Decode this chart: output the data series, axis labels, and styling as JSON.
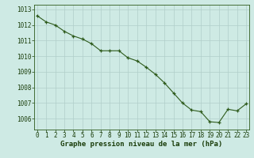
{
  "x": [
    0,
    1,
    2,
    3,
    4,
    5,
    6,
    7,
    8,
    9,
    10,
    11,
    12,
    13,
    14,
    15,
    16,
    17,
    18,
    19,
    20,
    21,
    22,
    23
  ],
  "y": [
    1012.6,
    1012.2,
    1012.0,
    1011.6,
    1011.3,
    1011.1,
    1010.8,
    1010.35,
    1010.35,
    1010.35,
    1009.9,
    1009.7,
    1009.3,
    1008.85,
    1008.3,
    1007.65,
    1007.0,
    1006.55,
    1006.45,
    1005.8,
    1005.75,
    1006.6,
    1006.5,
    1006.95
  ],
  "ylim": [
    1005.3,
    1013.3
  ],
  "yticks": [
    1006,
    1007,
    1008,
    1009,
    1010,
    1011,
    1012,
    1013
  ],
  "xticks": [
    0,
    1,
    2,
    3,
    4,
    5,
    6,
    7,
    8,
    9,
    10,
    11,
    12,
    13,
    14,
    15,
    16,
    17,
    18,
    19,
    20,
    21,
    22,
    23
  ],
  "line_color": "#2d5a1b",
  "marker_color": "#2d5a1b",
  "bg_color": "#ceeae4",
  "grid_color": "#b0cec9",
  "xlabel": "Graphe pression niveau de la mer (hPa)",
  "xlabel_color": "#1a3d0a",
  "tick_color": "#1a3d0a",
  "axis_color": "#2d5a1b",
  "tick_fontsize": 5.5,
  "xlabel_fontsize": 6.5
}
